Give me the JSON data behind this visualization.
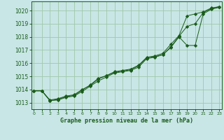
{
  "title": "Graphe pression niveau de la mer (hPa)",
  "background_color": "#c8e6e6",
  "grid_color": "#a0c8a8",
  "line_color": "#1a5c1a",
  "x_ticks": [
    0,
    1,
    2,
    3,
    4,
    5,
    6,
    7,
    8,
    9,
    10,
    11,
    12,
    13,
    14,
    15,
    16,
    17,
    18,
    19,
    20,
    21,
    22,
    23
  ],
  "ylim": [
    1012.5,
    1020.7
  ],
  "xlim": [
    -0.3,
    23.3
  ],
  "yticks": [
    1013,
    1014,
    1015,
    1016,
    1017,
    1018,
    1019,
    1020
  ],
  "series": [
    {
      "x": [
        0,
        1,
        2,
        3,
        4,
        5,
        6,
        7,
        8,
        9,
        10,
        11,
        12,
        13,
        14,
        15,
        16,
        17,
        18,
        19,
        20,
        21,
        22,
        23
      ],
      "y": [
        1013.9,
        1013.9,
        1013.2,
        1013.3,
        1013.5,
        1013.6,
        1014.0,
        1014.3,
        1014.8,
        1015.05,
        1015.35,
        1015.45,
        1015.55,
        1015.85,
        1016.45,
        1016.55,
        1016.75,
        1017.45,
        1018.1,
        1019.6,
        1019.75,
        1019.9,
        1020.2,
        1020.3
      ]
    },
    {
      "x": [
        0,
        1,
        2,
        3,
        4,
        5,
        6,
        7,
        8,
        9,
        10,
        11,
        12,
        13,
        14,
        15,
        16,
        17,
        18,
        19,
        20,
        21,
        22,
        23
      ],
      "y": [
        1013.9,
        1013.9,
        1013.15,
        1013.25,
        1013.45,
        1013.55,
        1013.95,
        1014.35,
        1014.85,
        1015.05,
        1015.3,
        1015.4,
        1015.5,
        1015.8,
        1016.4,
        1016.5,
        1016.65,
        1017.25,
        1018.05,
        1018.8,
        1019.0,
        1019.85,
        1020.15,
        1020.3
      ]
    },
    {
      "x": [
        0,
        1,
        2,
        3,
        4,
        5,
        6,
        7,
        8,
        9,
        10,
        11,
        12,
        13,
        14,
        15,
        16,
        17,
        18,
        19,
        20,
        21,
        22,
        23
      ],
      "y": [
        1013.9,
        1013.9,
        1013.15,
        1013.2,
        1013.4,
        1013.5,
        1013.85,
        1014.25,
        1014.65,
        1014.95,
        1015.25,
        1015.35,
        1015.45,
        1015.7,
        1016.35,
        1016.45,
        1016.65,
        1017.2,
        1018.0,
        1017.35,
        1017.35,
        1019.75,
        1020.1,
        1020.25
      ]
    }
  ]
}
